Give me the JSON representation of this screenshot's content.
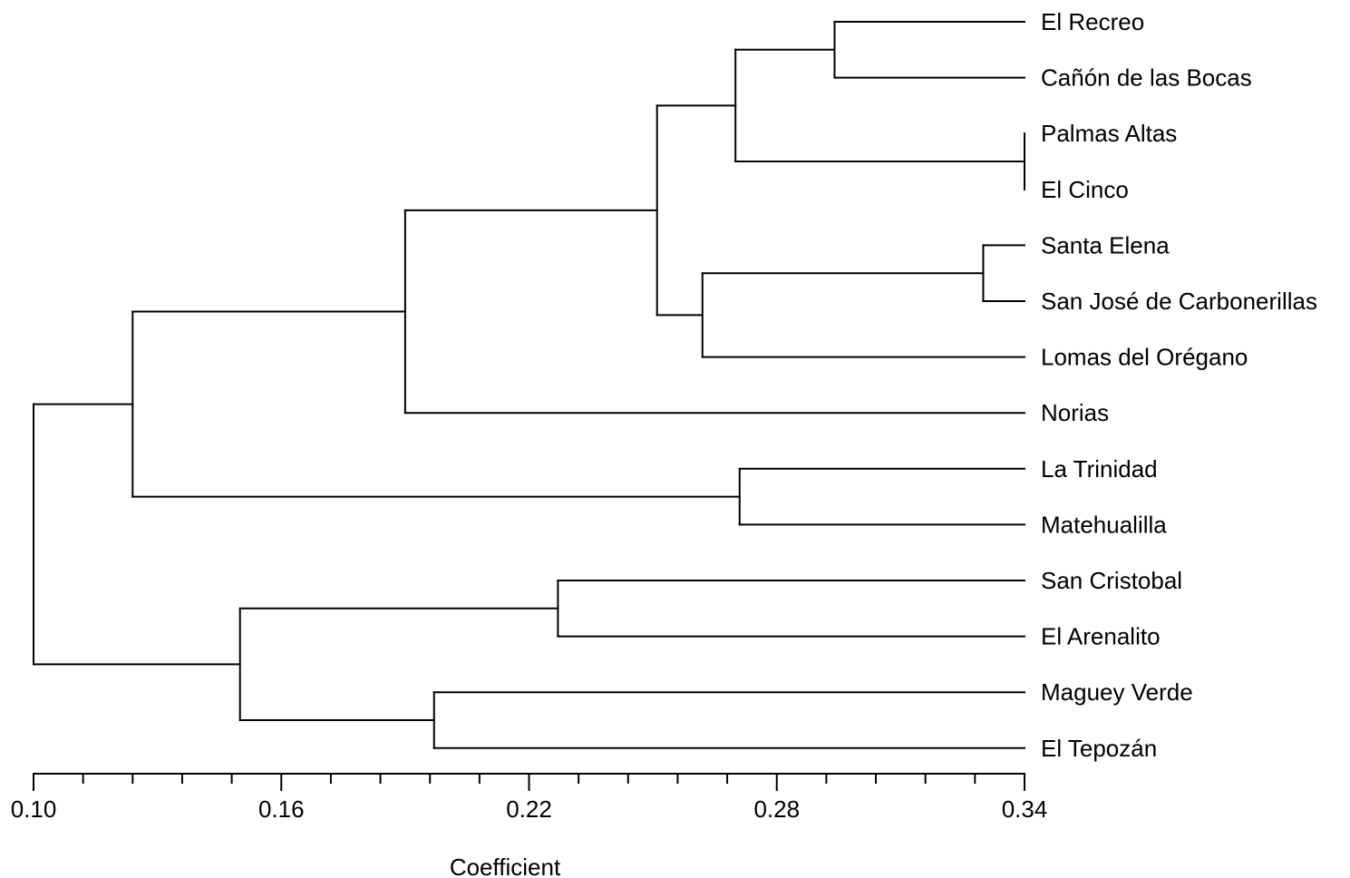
{
  "chart_data": {
    "type": "dendrogram",
    "xlabel": "Coefficient",
    "xlim": [
      0.1,
      0.34
    ],
    "ticks": [
      0.1,
      0.16,
      0.22,
      0.28,
      0.34
    ],
    "tick_labels": [
      "0.10",
      "0.16",
      "0.22",
      "0.28",
      "0.34"
    ],
    "minor_tick_step": 0.012,
    "leaves": [
      "El Recreo",
      "Cañón de las Bocas",
      "Palmas Altas",
      "El Cinco",
      "Santa Elena",
      "San José de Carbonerillas",
      "Lomas del Orégano",
      "Norias",
      "La Trinidad",
      "Matehualilla",
      "San Cristobal",
      "El Arenalito",
      "Maguey Verde",
      "El Tepozán"
    ],
    "merges": [
      {
        "id": "n1",
        "left": 2,
        "right": 3,
        "height": 0.34
      },
      {
        "id": "n2",
        "left": 4,
        "right": 5,
        "height": 0.33
      },
      {
        "id": "n3",
        "left": 0,
        "right": 1,
        "height": 0.294
      },
      {
        "id": "n4",
        "left": "n3",
        "right": "n1",
        "height": 0.27
      },
      {
        "id": "n5",
        "left": 8,
        "right": 9,
        "height": 0.271
      },
      {
        "id": "n6",
        "left": "n2",
        "right": 6,
        "height": 0.262
      },
      {
        "id": "n7",
        "left": "n4",
        "right": "n6",
        "height": 0.251
      },
      {
        "id": "n8",
        "left": 10,
        "right": 11,
        "height": 0.227
      },
      {
        "id": "n9",
        "left": 12,
        "right": 13,
        "height": 0.197
      },
      {
        "id": "n10",
        "left": "n7",
        "right": 7,
        "height": 0.19
      },
      {
        "id": "n11",
        "left": "n8",
        "right": "n9",
        "height": 0.15
      },
      {
        "id": "n12",
        "left": "n10",
        "right": "n5",
        "height": 0.124
      },
      {
        "id": "n13",
        "left": "n12",
        "right": "n11",
        "height": 0.1
      }
    ]
  }
}
